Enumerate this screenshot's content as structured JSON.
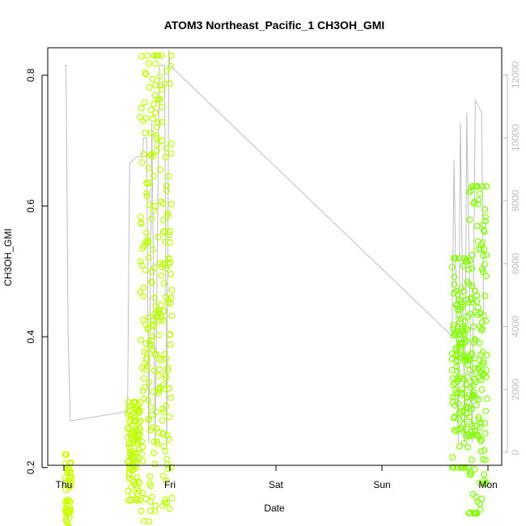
{
  "chart_data": {
    "type": "scatter",
    "title": "ATOM3 Northeast_Pacific_1 CH3OH_GMI",
    "xlabel": "Date",
    "ylabel": "CH3OH_GMI",
    "x_ticks": [
      "Thu",
      "Fri",
      "Sat",
      "Sun",
      "Mon"
    ],
    "y_ticks": [
      "0.2",
      "0.4",
      "0.6",
      "0.8"
    ],
    "y2_ticks": [
      "0",
      "2000",
      "4000",
      "6000",
      "8000",
      "10000",
      "12000"
    ],
    "xlim_days": [
      0,
      4.1
    ],
    "ylim": [
      0.05,
      0.85
    ],
    "y2lim": [
      0,
      12000
    ],
    "grid": false,
    "colors": {
      "axis": "#000000",
      "secondary": "#bebebe",
      "point_early": "#ccff00",
      "point_late": "#80ff00"
    },
    "series": [
      {
        "kind": "points",
        "segments": [
          {
            "day_start": 0.01,
            "day_end": 0.07,
            "y_min": 0.08,
            "y_max": 0.22
          },
          {
            "day_start": 0.6,
            "day_end": 0.72,
            "y_min": 0.15,
            "y_max": 0.3
          },
          {
            "day_start": 0.72,
            "day_end": 1.02,
            "y_min": 0.08,
            "y_max": 0.83
          },
          {
            "day_start": 3.66,
            "day_end": 3.82,
            "y_min": 0.2,
            "y_max": 0.52
          },
          {
            "day_start": 3.82,
            "day_end": 3.99,
            "y_min": 0.13,
            "y_max": 0.63
          }
        ]
      },
      {
        "kind": "line",
        "axis": "secondary",
        "points": [
          [
            0.0,
            12300
          ],
          [
            0.02,
            12300
          ],
          [
            0.04,
            3700
          ],
          [
            0.06,
            1000
          ],
          [
            0.6,
            1300
          ],
          [
            0.62,
            9200
          ],
          [
            0.69,
            9400
          ],
          [
            0.74,
            9400
          ],
          [
            0.75,
            10000
          ],
          [
            0.78,
            10000
          ],
          [
            0.8,
            300
          ],
          [
            0.83,
            10500
          ],
          [
            0.86,
            300
          ],
          [
            0.9,
            12300
          ],
          [
            0.95,
            12300
          ],
          [
            0.97,
            200
          ],
          [
            0.99,
            12800
          ],
          [
            1.0,
            12300
          ],
          [
            3.66,
            3700
          ],
          [
            3.68,
            9300
          ],
          [
            3.72,
            300
          ],
          [
            3.74,
            10500
          ],
          [
            3.78,
            300
          ],
          [
            3.8,
            10800
          ],
          [
            3.85,
            300
          ],
          [
            3.88,
            11200
          ],
          [
            3.94,
            10800
          ],
          [
            3.96,
            4200
          ]
        ]
      }
    ]
  }
}
